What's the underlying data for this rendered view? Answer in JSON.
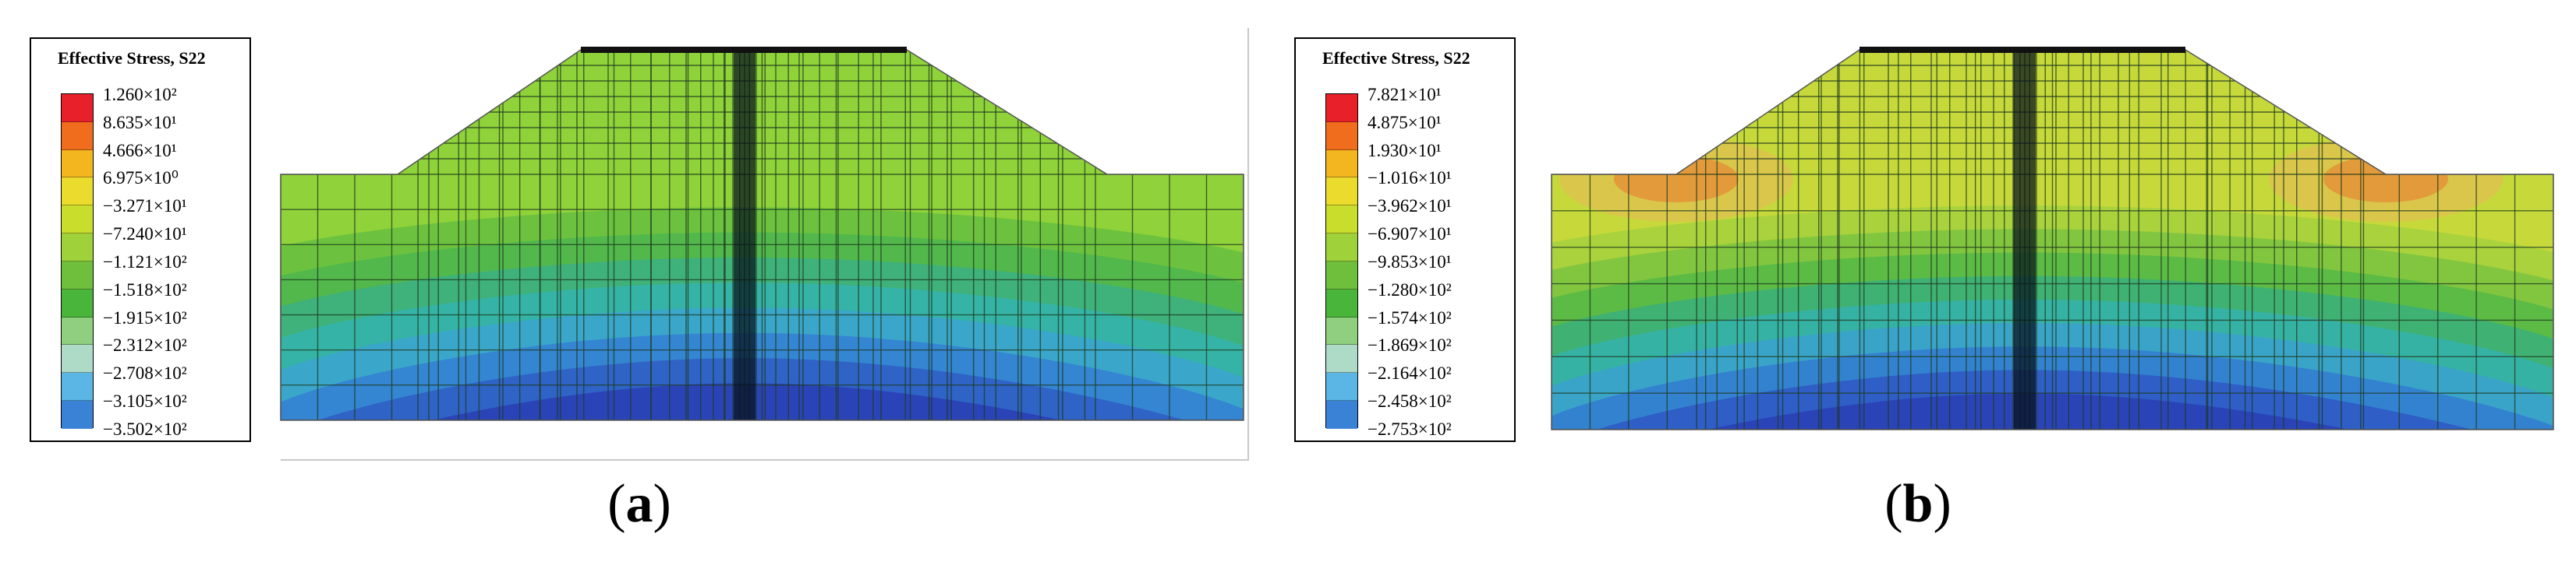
{
  "colors": {
    "contour_bands": [
      "#e8202a",
      "#f06d1e",
      "#f4b61f",
      "#eadb2d",
      "#c9de2c",
      "#9fd23a",
      "#6fbf3d",
      "#49b53b",
      "#8fcf7f",
      "#aedac8",
      "#5bb6e6",
      "#3a82d6",
      "#2a4ea8"
    ],
    "mesh_line": "#1f3a1f",
    "centerline": "#05101a"
  },
  "panel_a": {
    "legend": {
      "title": "Effective Stress, S22",
      "labels": [
        "1.260×10²",
        "8.635×10¹",
        "4.666×10¹",
        "6.975×10⁰",
        "−3.271×10¹",
        "−7.240×10¹",
        "−1.121×10²",
        "−1.518×10²",
        "−1.915×10²",
        "−2.312×10²",
        "−2.708×10²",
        "−3.105×10²",
        "−3.502×10²"
      ]
    },
    "caption": {
      "open": "(",
      "letter": "a",
      "close": ")"
    }
  },
  "panel_b": {
    "legend": {
      "title": "Effective Stress, S22",
      "labels": [
        "7.821×10¹",
        "4.875×10¹",
        "1.930×10¹",
        "−1.016×10¹",
        "−3.962×10¹",
        "−6.907×10¹",
        "−9.853×10¹",
        "−1.280×10²",
        "−1.574×10²",
        "−1.869×10²",
        "−2.164×10²",
        "−2.458×10²",
        "−2.753×10²"
      ]
    },
    "caption": {
      "open": "(",
      "letter": "b",
      "close": ")"
    }
  }
}
